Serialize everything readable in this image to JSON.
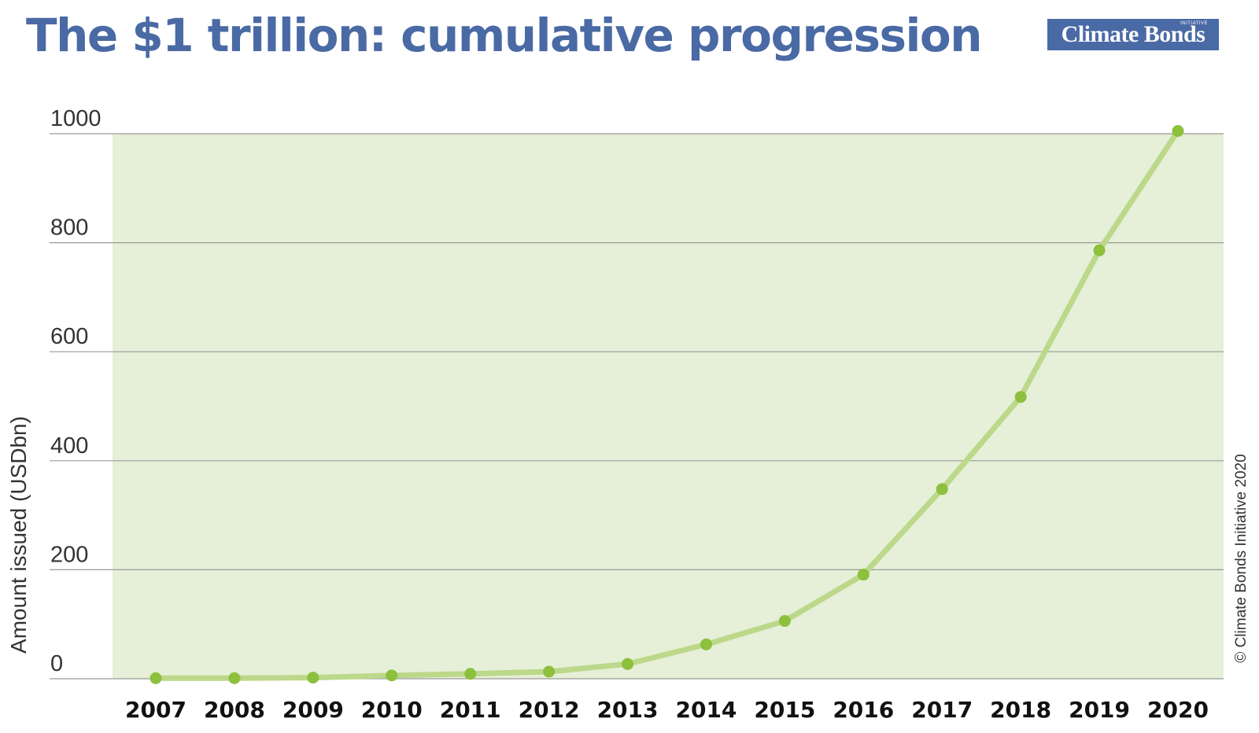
{
  "title": "The $1 trillion: cumulative progression",
  "logo": {
    "text": "Climate Bonds",
    "subtext": "INITIATIVE"
  },
  "copyright": "© Climate Bonds Initiative 2020",
  "colors": {
    "title": "#4a6aa5",
    "plot_background": "#e6efd7",
    "line": "#bcd88a",
    "marker": "#8dc03d",
    "grid": "#9a9a9a"
  },
  "chart_data": {
    "type": "line",
    "title": "The $1 trillion: cumulative progression",
    "xlabel": "",
    "ylabel": "Amount issued (USDbn)",
    "x": [
      "2007",
      "2008",
      "2009",
      "2010",
      "2011",
      "2012",
      "2013",
      "2014",
      "2015",
      "2016",
      "2017",
      "2018",
      "2019",
      "2020"
    ],
    "series": [
      {
        "values": [
          1,
          1,
          2,
          6,
          9,
          13,
          27,
          63,
          106,
          191,
          348,
          517,
          786,
          1005
        ]
      }
    ],
    "ylim": [
      0,
      1000
    ],
    "yticks": [
      "0",
      "200",
      "400",
      "600",
      "800",
      "1000"
    ],
    "grid": true,
    "legend": "none"
  }
}
